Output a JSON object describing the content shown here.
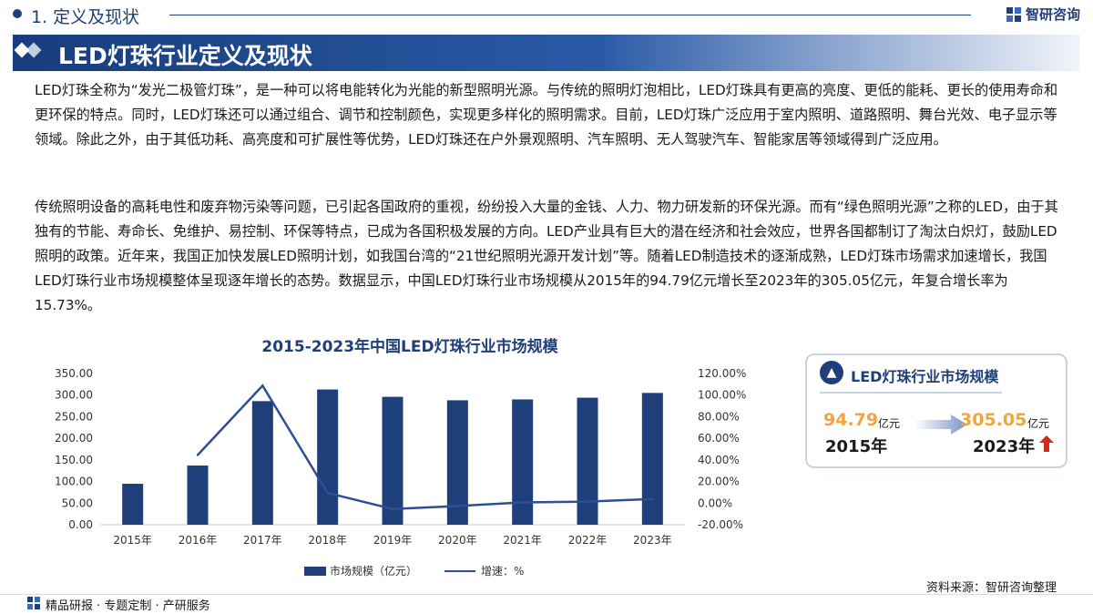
{
  "header": {
    "section": "1. 定义及现状",
    "brand": "智研咨询",
    "title": "LED灯珠行业定义及现状"
  },
  "paragraphs": {
    "p1": "LED灯珠全称为“发光二极管灯珠”，是一种可以将电能转化为光能的新型照明光源。与传统的照明灯泡相比，LED灯珠具有更高的亮度、更低的能耗、更长的使用寿命和更环保的特点。同时，LED灯珠还可以通过组合、调节和控制颜色，实现更多样化的照明需求。目前，LED灯珠广泛应用于室内照明、道路照明、舞台光效、电子显示等领域。除此之外，由于其低功耗、高亮度和可扩展性等优势，LED灯珠还在户外景观照明、汽车照明、无人驾驶汽车、智能家居等领域得到广泛应用。",
    "p2": "传统照明设备的高耗电性和废弃物污染等问题，已引起各国政府的重视，纷纷投入大量的金钱、人力、物力研发新的环保光源。而有“绿色照明光源”之称的LED，由于其独有的节能、寿命长、免维护、易控制、环保等特点，已成为各国积极发展的方向。LED产业具有巨大的潜在经济和社会效应，世界各国都制订了淘汰白炽灯，鼓励LED照明的政策。近年来，我国正加快发展LED照明计划，如我国台湾的“21世纪照明光源开发计划”等。随着LED制造技术的逐渐成熟，LED灯珠市场需求加速增长，我国LED灯珠行业市场规模整体呈现逐年增长的态势。数据显示，中国LED灯珠行业市场规模从2015年的94.79亿元增长至2023年的305.05亿元，年复合增长率为15.73%。"
  },
  "chart_data": {
    "type": "bar",
    "title": "2015-2023年中国LED灯珠行业市场规模",
    "categories": [
      "2015年",
      "2016年",
      "2017年",
      "2018年",
      "2019年",
      "2020年",
      "2021年",
      "2022年",
      "2023年"
    ],
    "series": [
      {
        "name": "市场规模（亿元）",
        "type": "bar",
        "axis": "left",
        "values": [
          94.79,
          137,
          286,
          313,
          296,
          288,
          290,
          294,
          305.05
        ]
      },
      {
        "name": "增速：%",
        "type": "line",
        "axis": "right",
        "values": [
          null,
          44.5,
          108.8,
          9.4,
          -5.4,
          -2.7,
          0.7,
          1.4,
          3.8
        ]
      }
    ],
    "y_left": {
      "ylim": [
        0,
        350
      ],
      "ticks": [
        "0.00",
        "50.00",
        "100.00",
        "150.00",
        "200.00",
        "250.00",
        "300.00",
        "350.00"
      ]
    },
    "y_right": {
      "ylim": [
        -20,
        120
      ],
      "ticks": [
        "-20.00%",
        "0.00%",
        "20.00%",
        "40.00%",
        "60.00%",
        "80.00%",
        "100.00%",
        "120.00%"
      ]
    },
    "legend_position": "bottom",
    "grid": false,
    "colors": {
      "bar": "#1f3f7a",
      "line": "#2f4f93"
    }
  },
  "card": {
    "title": "LED灯珠行业市场规模",
    "start_value": "94.79",
    "start_unit": "亿元",
    "start_year": "2015年",
    "end_value": "305.05",
    "end_unit": "亿元",
    "end_year": "2023年"
  },
  "source": "资料来源：智研咨询整理",
  "footer": "精品研报 · 专题定制 · 产研服务",
  "colors": {
    "primary": "#1f3f7a",
    "accent": "#f0a541",
    "up": "#d42a1e"
  }
}
